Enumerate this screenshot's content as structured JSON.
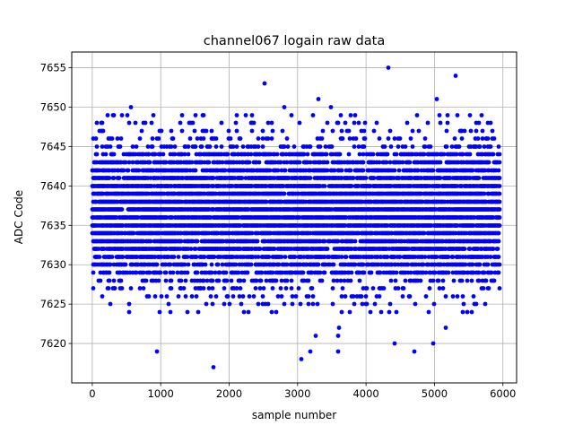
{
  "chart_data": {
    "type": "scatter",
    "title": "channel067 logain raw data",
    "xlabel": "sample number",
    "ylabel": "ADC Code",
    "xlim": [
      -300,
      6200
    ],
    "ylim": [
      7615,
      7657
    ],
    "xticks": [
      0,
      1000,
      2000,
      3000,
      4000,
      5000,
      6000
    ],
    "yticks": [
      7620,
      7625,
      7630,
      7635,
      7640,
      7645,
      7650,
      7655
    ],
    "grid": true,
    "marker_color": "#0000ff",
    "series": [
      {
        "x_start": 0,
        "x_end": 5950,
        "dense_band": [
          7629,
          7644
        ],
        "sparse_codes": [
          7624,
          7625,
          7626,
          7627,
          7628,
          7645,
          7646,
          7647,
          7648,
          7649
        ],
        "outliers": [
          {
            "x": 560,
            "y": 7650
          },
          {
            "x": 950,
            "y": 7619
          },
          {
            "x": 1770,
            "y": 7617
          },
          {
            "x": 2520,
            "y": 7653
          },
          {
            "x": 2800,
            "y": 7650
          },
          {
            "x": 3060,
            "y": 7618
          },
          {
            "x": 3190,
            "y": 7619
          },
          {
            "x": 3270,
            "y": 7621
          },
          {
            "x": 3310,
            "y": 7651
          },
          {
            "x": 3490,
            "y": 7650
          },
          {
            "x": 3590,
            "y": 7619
          },
          {
            "x": 4330,
            "y": 7655
          },
          {
            "x": 4420,
            "y": 7620
          },
          {
            "x": 4700,
            "y": 7619
          },
          {
            "x": 4980,
            "y": 7620
          },
          {
            "x": 5040,
            "y": 7651
          },
          {
            "x": 5310,
            "y": 7654
          },
          {
            "x": 5160,
            "y": 7622
          },
          {
            "x": 3600,
            "y": 7622
          },
          {
            "x": 3590,
            "y": 7621
          }
        ]
      }
    ]
  }
}
